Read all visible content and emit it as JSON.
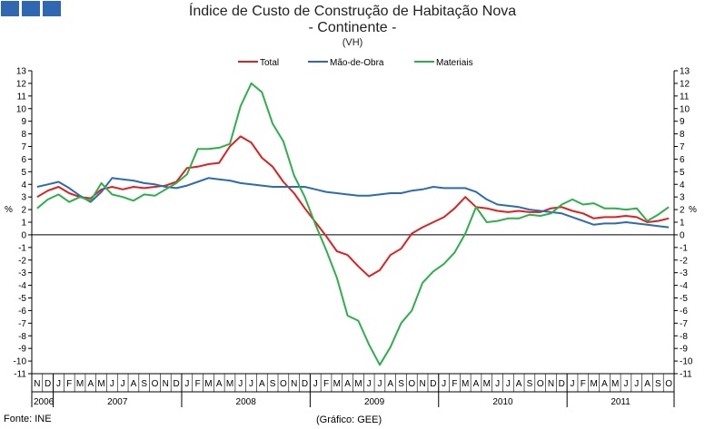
{
  "title": "Índice de Custo de Construção de Habitação Nova",
  "subtitle": "- Continente -",
  "unit_note": "(VH)",
  "source": "Fonte: INE",
  "credit": "(Gráfico: GEE)",
  "colors": {
    "Total": "#e02020",
    "Mao": "#2b6cb0",
    "Materiais": "#2db04b"
  },
  "chart_data": {
    "type": "line",
    "title": "Índice de Custo de Construção de Habitação Nova",
    "ylabel": "%",
    "ylim": [
      -11,
      13
    ],
    "y_ticks": [
      13,
      12,
      11,
      10,
      9,
      8,
      7,
      6,
      5,
      4,
      3,
      2,
      1,
      0,
      -1,
      -2,
      -3,
      -4,
      -5,
      -6,
      -7,
      -8,
      -9,
      -10,
      -11
    ],
    "legend_position": "top-center",
    "grid": false,
    "x_month_labels": [
      "N",
      "D",
      "J",
      "F",
      "M",
      "A",
      "M",
      "J",
      "J",
      "A",
      "S",
      "O",
      "N",
      "D",
      "J",
      "F",
      "M",
      "A",
      "M",
      "J",
      "J",
      "A",
      "S",
      "O",
      "N",
      "D",
      "J",
      "F",
      "M",
      "A",
      "M",
      "J",
      "J",
      "A",
      "S",
      "O",
      "N",
      "D",
      "J",
      "F",
      "M",
      "A",
      "M",
      "J",
      "J",
      "A",
      "S",
      "O",
      "N",
      "D",
      "J",
      "F",
      "M",
      "A",
      "M",
      "J",
      "J",
      "A",
      "S",
      "O"
    ],
    "years": [
      {
        "label": "2006",
        "start": 0,
        "count": 2
      },
      {
        "label": "2007",
        "start": 2,
        "count": 12
      },
      {
        "label": "2008",
        "start": 14,
        "count": 12
      },
      {
        "label": "2009",
        "start": 26,
        "count": 12
      },
      {
        "label": "2010",
        "start": 38,
        "count": 12
      },
      {
        "label": "2011",
        "start": 50,
        "count": 10
      }
    ],
    "series": [
      {
        "name": "Total",
        "values": [
          3.0,
          3.5,
          3.8,
          3.3,
          3.0,
          2.9,
          3.6,
          3.8,
          3.6,
          3.8,
          3.7,
          3.8,
          3.9,
          4.2,
          5.3,
          5.4,
          5.6,
          5.7,
          7.0,
          7.8,
          7.3,
          6.1,
          5.4,
          4.2,
          3.3,
          2.1,
          1.0,
          -0.1,
          -1.3,
          -1.6,
          -2.5,
          -3.3,
          -2.8,
          -1.6,
          -1.1,
          0.1,
          0.6,
          1.0,
          1.4,
          2.1,
          3.0,
          2.2,
          2.1,
          1.9,
          1.8,
          1.9,
          1.8,
          1.8,
          2.1,
          2.2,
          1.9,
          1.7,
          1.3,
          1.4,
          1.4,
          1.5,
          1.4,
          1.0,
          1.1,
          1.3
        ]
      },
      {
        "name": "Mão-de-Obra",
        "values": [
          3.8,
          4.0,
          4.2,
          3.7,
          3.1,
          2.6,
          3.4,
          4.5,
          4.4,
          4.3,
          4.1,
          4.0,
          3.8,
          3.7,
          3.9,
          4.2,
          4.5,
          4.4,
          4.3,
          4.1,
          4.0,
          3.9,
          3.8,
          3.8,
          3.8,
          3.8,
          3.6,
          3.4,
          3.3,
          3.2,
          3.1,
          3.1,
          3.2,
          3.3,
          3.3,
          3.5,
          3.6,
          3.8,
          3.7,
          3.7,
          3.7,
          3.4,
          2.8,
          2.4,
          2.3,
          2.2,
          2.0,
          1.9,
          1.8,
          1.7,
          1.4,
          1.1,
          0.8,
          0.9,
          0.9,
          1.0,
          0.9,
          0.8,
          0.7,
          0.6
        ]
      },
      {
        "name": "Materiais",
        "values": [
          2.1,
          2.8,
          3.2,
          2.6,
          3.0,
          2.7,
          4.1,
          3.2,
          3.0,
          2.7,
          3.2,
          3.1,
          3.6,
          4.1,
          4.8,
          6.8,
          6.8,
          6.9,
          7.2,
          10.2,
          12.0,
          11.3,
          8.8,
          7.4,
          4.7,
          3.0,
          0.8,
          -1.2,
          -3.4,
          -6.4,
          -6.8,
          -8.7,
          -10.3,
          -8.9,
          -7.0,
          -6.0,
          -3.8,
          -2.9,
          -2.3,
          -1.4,
          0.1,
          2.2,
          1.0,
          1.1,
          1.3,
          1.3,
          1.6,
          1.5,
          1.7,
          2.4,
          2.8,
          2.4,
          2.5,
          2.1,
          2.1,
          2.0,
          2.1,
          1.1,
          1.6,
          2.2
        ]
      }
    ]
  }
}
